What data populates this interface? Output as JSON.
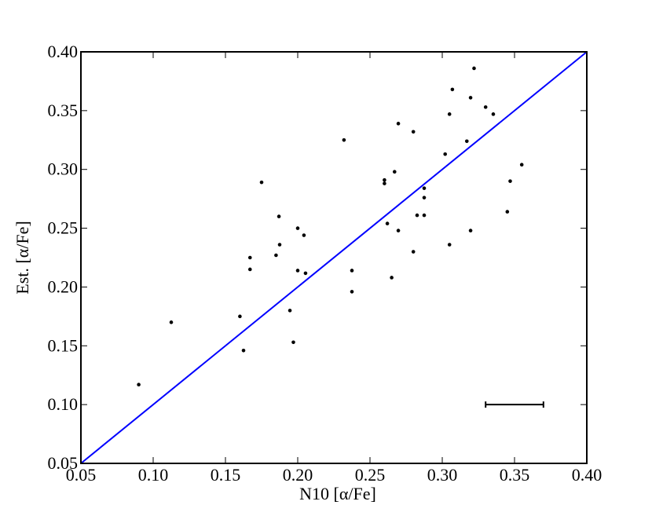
{
  "chart_data": {
    "type": "scatter",
    "x_label": "N10 [α/Fe]",
    "y_label": "Est. [α/Fe]",
    "xlim": [
      0.05,
      0.4
    ],
    "ylim": [
      0.05,
      0.4
    ],
    "xticks": [
      0.05,
      {
        "value": 0.1,
        "label": "0.10"
      },
      0.15,
      {
        "value": 0.2,
        "label": "0.20"
      },
      0.25,
      {
        "value": 0.3,
        "label": "0.30"
      },
      0.35,
      {
        "value": 0.4,
        "label": "0.40"
      }
    ],
    "yticks": [
      0.05,
      {
        "value": 0.1,
        "label": "0.10"
      },
      0.15,
      {
        "value": 0.2,
        "label": "0.20"
      },
      0.25,
      {
        "value": 0.3,
        "label": "0.30"
      },
      0.35,
      {
        "value": 0.4,
        "label": "0.40"
      }
    ],
    "series": [
      {
        "color": "#000000",
        "x": [
          0.09,
          0.1125,
          0.16,
          0.1625,
          0.167,
          0.167,
          0.175,
          0.185,
          0.187,
          0.1875,
          0.1946,
          0.197,
          0.2,
          0.2,
          0.2043,
          0.2054,
          0.232,
          0.2375,
          0.2375,
          0.26,
          0.26,
          0.262,
          0.265,
          0.267,
          0.2696,
          0.2696,
          0.28,
          0.28,
          0.2826,
          0.2875,
          0.2875,
          0.2875,
          0.302,
          0.305,
          0.305,
          0.307,
          0.317,
          0.3196,
          0.3196,
          0.322,
          0.33,
          0.3353,
          0.345,
          0.347,
          0.355
        ],
        "y": [
          0.117,
          0.17,
          0.175,
          0.146,
          0.225,
          0.215,
          0.289,
          0.227,
          0.26,
          0.236,
          0.18,
          0.153,
          0.25,
          0.214,
          0.244,
          0.2117,
          0.325,
          0.214,
          0.196,
          0.291,
          0.288,
          0.254,
          0.208,
          0.298,
          0.339,
          0.248,
          0.332,
          0.23,
          0.261,
          0.284,
          0.276,
          0.261,
          0.313,
          0.347,
          0.236,
          0.368,
          0.324,
          0.361,
          0.248,
          0.386,
          0.353,
          0.347,
          0.264,
          0.29,
          0.304
        ]
      }
    ],
    "reference_line": {
      "x": [
        0.05,
        0.4
      ],
      "y": [
        0.05,
        0.4
      ],
      "color": "#0000ff"
    },
    "error_bar": {
      "x": 0.35,
      "y": 0.1,
      "xerr": 0.02,
      "color": "#000000"
    }
  }
}
